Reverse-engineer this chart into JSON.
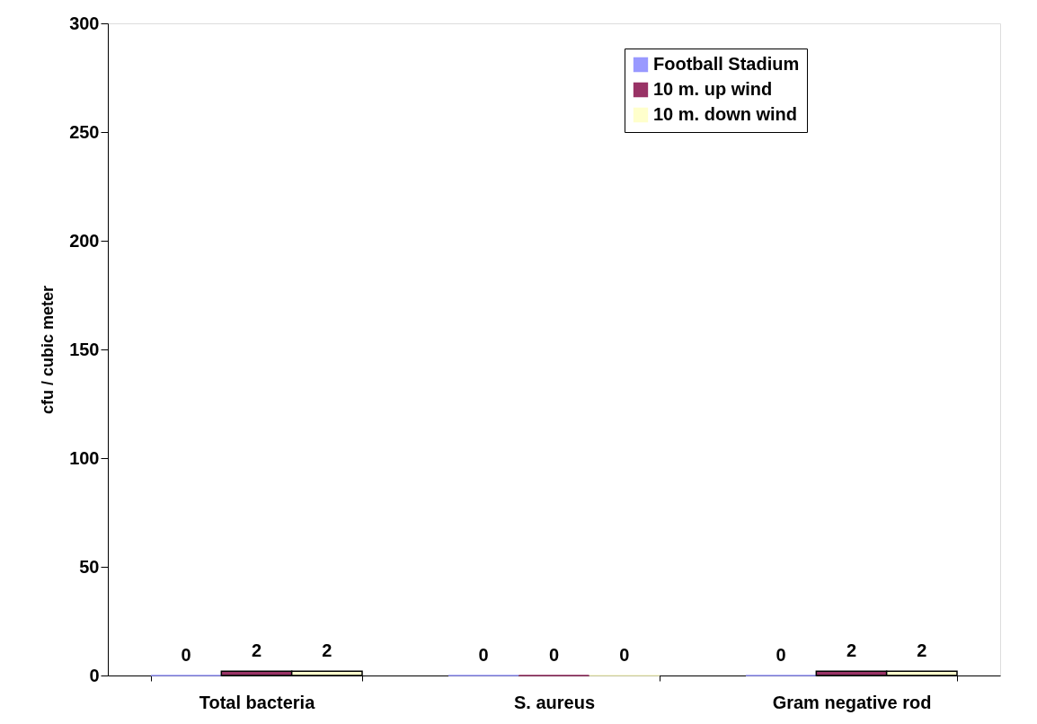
{
  "chart_data": {
    "type": "bar",
    "ylabel": "cfu / cubic meter",
    "categories": [
      "Total bacteria",
      "S. aureus",
      "Gram negative rod"
    ],
    "series": [
      {
        "name": "Football Stadium",
        "color": "#9999ff",
        "values": [
          0,
          0,
          0
        ]
      },
      {
        "name": "10 m. up wind",
        "color": "#993366",
        "values": [
          2,
          0,
          2
        ]
      },
      {
        "name": "10 m. down wind",
        "color": "#ffffcc",
        "values": [
          2,
          0,
          2
        ]
      }
    ],
    "ylim": [
      0,
      300
    ],
    "yticks": [
      0,
      50,
      100,
      150,
      200,
      250,
      300
    ],
    "grid": false,
    "legend": "top right",
    "data_labels": true
  }
}
